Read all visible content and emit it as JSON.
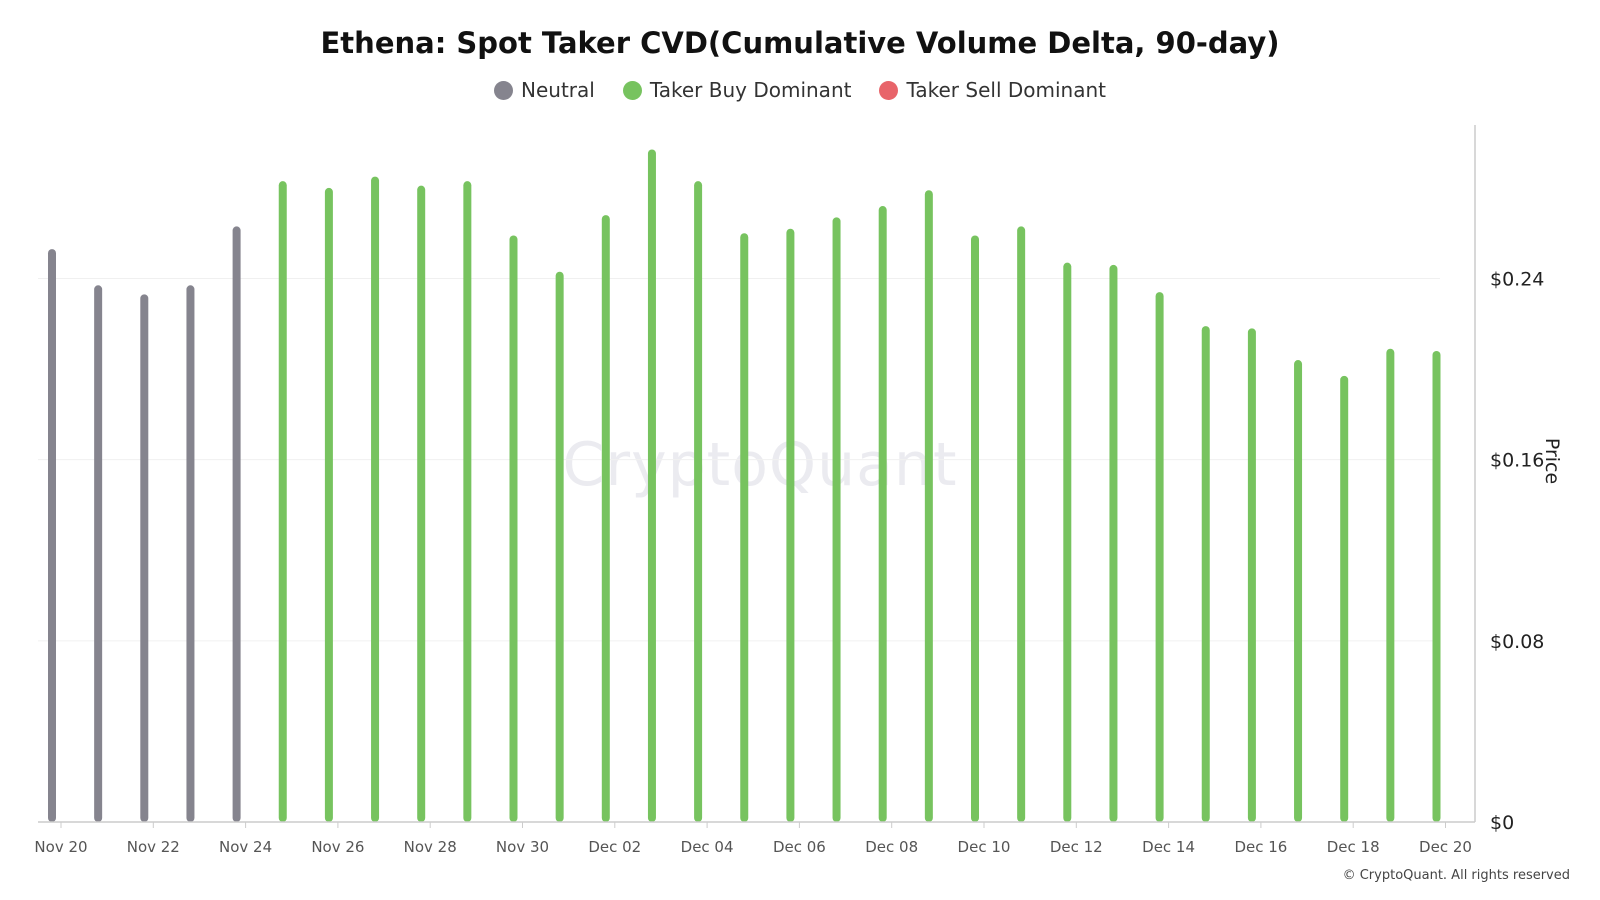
{
  "title": "Ethena: Spot Taker CVD(Cumulative Volume Delta, 90-day)",
  "legend": [
    {
      "label": "Neutral",
      "color": "#85848e"
    },
    {
      "label": "Taker Buy Dominant",
      "color": "#77c35f"
    },
    {
      "label": "Taker Sell Dominant",
      "color": "#e8646a"
    }
  ],
  "watermark": "CryptoQuant",
  "copyright": "© CryptoQuant. All rights reserved",
  "chart_data": {
    "type": "bar",
    "ylabel": "Price",
    "ylim": [
      0,
      0.31
    ],
    "yticks": [
      {
        "value": 0,
        "label": "$0"
      },
      {
        "value": 0.08,
        "label": "$0.08"
      },
      {
        "value": 0.16,
        "label": "$0.16"
      },
      {
        "value": 0.24,
        "label": "$0.24"
      }
    ],
    "xtick_labels": [
      "Nov 20",
      "Nov 22",
      "Nov 24",
      "Nov 26",
      "Nov 28",
      "Nov 30",
      "Dec 02",
      "Dec 04",
      "Dec 06",
      "Dec 08",
      "Dec 10",
      "Dec 12",
      "Dec 14",
      "Dec 16",
      "Dec 18",
      "Dec 20"
    ],
    "categories": [
      "Nov 20",
      "Nov 21",
      "Nov 22",
      "Nov 23",
      "Nov 24",
      "Nov 25",
      "Nov 26",
      "Nov 27",
      "Nov 28",
      "Nov 29",
      "Nov 30",
      "Dec 01",
      "Dec 02",
      "Dec 03",
      "Dec 04",
      "Dec 05",
      "Dec 06",
      "Dec 07",
      "Dec 08",
      "Dec 09",
      "Dec 10",
      "Dec 11",
      "Dec 12",
      "Dec 13",
      "Dec 14",
      "Dec 15",
      "Dec 16",
      "Dec 17",
      "Dec 18",
      "Dec 19",
      "Dec 20"
    ],
    "values": [
      0.253,
      0.237,
      0.233,
      0.237,
      0.263,
      0.283,
      0.28,
      0.285,
      0.281,
      0.283,
      0.259,
      0.243,
      0.268,
      0.297,
      0.283,
      0.26,
      0.262,
      0.267,
      0.272,
      0.279,
      0.259,
      0.263,
      0.247,
      0.246,
      0.234,
      0.219,
      0.218,
      0.204,
      0.197,
      0.209,
      0.208
    ],
    "status": [
      "Neutral",
      "Neutral",
      "Neutral",
      "Neutral",
      "Neutral",
      "Taker Buy Dominant",
      "Taker Buy Dominant",
      "Taker Buy Dominant",
      "Taker Buy Dominant",
      "Taker Buy Dominant",
      "Taker Buy Dominant",
      "Taker Buy Dominant",
      "Taker Buy Dominant",
      "Taker Buy Dominant",
      "Taker Buy Dominant",
      "Taker Buy Dominant",
      "Taker Buy Dominant",
      "Taker Buy Dominant",
      "Taker Buy Dominant",
      "Taker Buy Dominant",
      "Taker Buy Dominant",
      "Taker Buy Dominant",
      "Taker Buy Dominant",
      "Taker Buy Dominant",
      "Taker Buy Dominant",
      "Taker Buy Dominant",
      "Taker Buy Dominant",
      "Taker Buy Dominant",
      "Taker Buy Dominant",
      "Taker Buy Dominant",
      "Taker Buy Dominant"
    ],
    "grid": true,
    "legend_position": "top-center"
  }
}
